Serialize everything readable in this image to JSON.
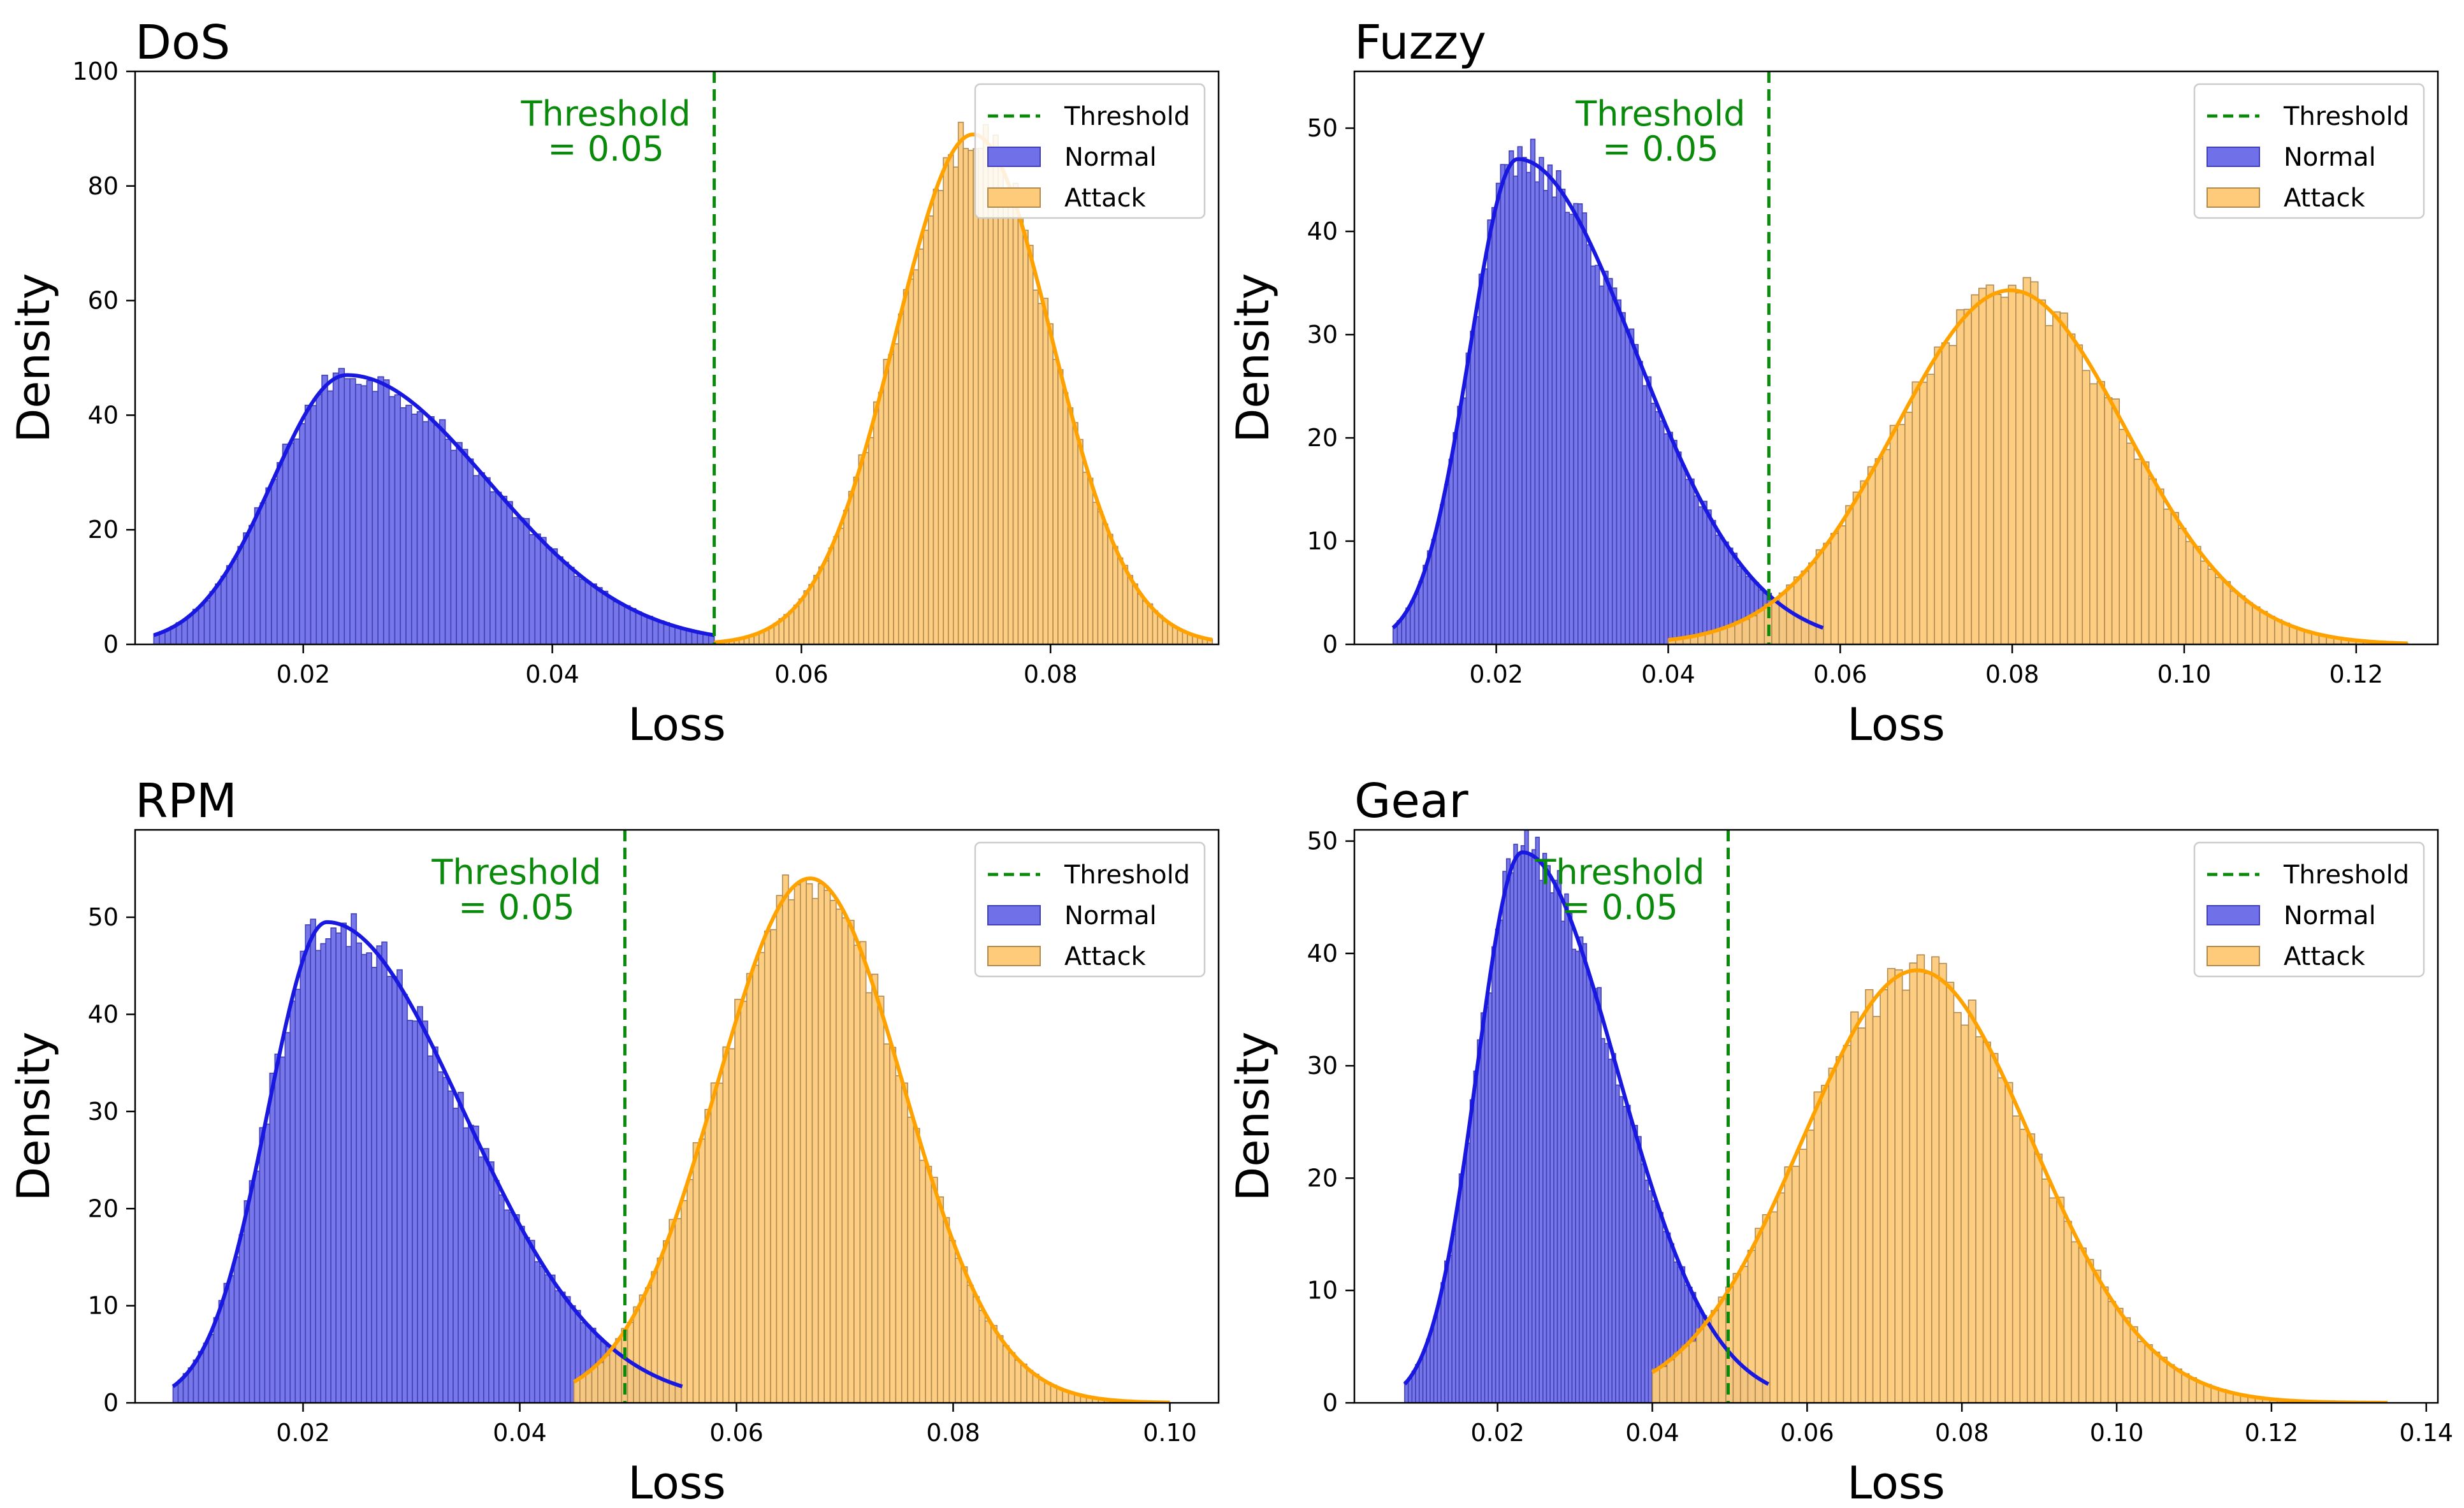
{
  "figure": {
    "colors": {
      "normal_fill": "#7070e8",
      "normal_edge": "#4040b8",
      "normal_kde": "#1818e0",
      "attack_fill": "#fdcb7a",
      "attack_edge": "#b08a50",
      "attack_kde": "#ffa200",
      "threshold": "#0a8a0a",
      "axis": "#000000"
    }
  },
  "chart_data": [
    {
      "type": "histogram",
      "title": "DoS",
      "xlabel": "Loss",
      "ylabel": "Density",
      "xlim": [
        0.0065,
        0.0935
      ],
      "ylim": [
        0,
        100
      ],
      "xticks": [
        0.02,
        0.04,
        0.06,
        0.08
      ],
      "xtick_labels": [
        "0.02",
        "0.04",
        "0.06",
        "0.08"
      ],
      "yticks": [
        0,
        20,
        40,
        60,
        80,
        100
      ],
      "ytick_labels": [
        "0",
        "20",
        "40",
        "60",
        "80",
        "100"
      ],
      "threshold": {
        "value": 0.053,
        "label": "Threshold",
        "annotation": [
          "Threshold",
          "= 0.05"
        ]
      },
      "legend": {
        "location": "top-right",
        "entries": [
          "Threshold",
          "Normal",
          "Attack"
        ]
      },
      "series": [
        {
          "name": "Normal",
          "range": [
            0.008,
            0.053
          ],
          "shape": "right-skewed",
          "peak_x": 0.0235,
          "peak_density": 47
        },
        {
          "name": "Attack",
          "range": [
            0.053,
            0.093
          ],
          "shape": "bell",
          "peak_x": 0.0738,
          "peak_density": 89
        }
      ]
    },
    {
      "type": "histogram",
      "title": "Fuzzy",
      "xlabel": "Loss",
      "ylabel": "Density",
      "xlim": [
        0.0035,
        0.1295
      ],
      "ylim": [
        0,
        55.5
      ],
      "xticks": [
        0.02,
        0.04,
        0.06,
        0.08,
        0.1,
        0.12
      ],
      "xtick_labels": [
        "0.02",
        "0.04",
        "0.06",
        "0.08",
        "0.10",
        "0.12"
      ],
      "yticks": [
        0,
        10,
        20,
        30,
        40,
        50
      ],
      "ytick_labels": [
        "0",
        "10",
        "20",
        "30",
        "40",
        "50"
      ],
      "threshold": {
        "value": 0.0517,
        "label": "Threshold",
        "annotation": [
          "Threshold",
          "= 0.05"
        ]
      },
      "legend": {
        "location": "top-right",
        "entries": [
          "Threshold",
          "Normal",
          "Attack"
        ]
      },
      "series": [
        {
          "name": "Normal",
          "range": [
            0.008,
            0.058
          ],
          "shape": "right-skewed",
          "peak_x": 0.0225,
          "peak_density": 47
        },
        {
          "name": "Attack",
          "range": [
            0.04,
            0.126
          ],
          "shape": "bell",
          "peak_x": 0.0798,
          "peak_density": 34.3
        }
      ]
    },
    {
      "type": "histogram",
      "title": "RPM",
      "xlabel": "Loss",
      "ylabel": "Density",
      "xlim": [
        0.0045,
        0.1045
      ],
      "ylim": [
        0,
        59
      ],
      "xticks": [
        0.02,
        0.04,
        0.06,
        0.08,
        0.1
      ],
      "xtick_labels": [
        "0.02",
        "0.04",
        "0.06",
        "0.08",
        "0.10"
      ],
      "yticks": [
        0,
        10,
        20,
        30,
        40,
        50
      ],
      "ytick_labels": [
        "0",
        "10",
        "20",
        "30",
        "40",
        "50"
      ],
      "threshold": {
        "value": 0.0497,
        "label": "Threshold",
        "annotation": [
          "Threshold",
          "= 0.05"
        ]
      },
      "legend": {
        "location": "top-right",
        "entries": [
          "Threshold",
          "Normal",
          "Attack"
        ]
      },
      "series": [
        {
          "name": "Normal",
          "range": [
            0.008,
            0.055
          ],
          "shape": "right-skewed",
          "peak_x": 0.0222,
          "peak_density": 49.5
        },
        {
          "name": "Attack",
          "range": [
            0.045,
            0.1
          ],
          "shape": "bell",
          "peak_x": 0.0668,
          "peak_density": 54
        }
      ]
    },
    {
      "type": "histogram",
      "title": "Gear",
      "xlabel": "Loss",
      "ylabel": "Density",
      "xlim": [
        0.0015,
        0.1415
      ],
      "ylim": [
        0,
        51
      ],
      "xticks": [
        0.02,
        0.04,
        0.06,
        0.08,
        0.1,
        0.12,
        0.14
      ],
      "xtick_labels": [
        "0.02",
        "0.04",
        "0.06",
        "0.08",
        "0.10",
        "0.12",
        "0.14"
      ],
      "yticks": [
        0,
        10,
        20,
        30,
        40,
        50
      ],
      "ytick_labels": [
        "0",
        "10",
        "20",
        "30",
        "40",
        "50"
      ],
      "threshold": {
        "value": 0.0498,
        "label": "Threshold",
        "annotation": [
          "Threshold",
          "= 0.05"
        ]
      },
      "legend": {
        "location": "top-right",
        "entries": [
          "Threshold",
          "Normal",
          "Attack"
        ]
      },
      "series": [
        {
          "name": "Normal",
          "range": [
            0.008,
            0.055
          ],
          "shape": "right-skewed",
          "peak_x": 0.0232,
          "peak_density": 49
        },
        {
          "name": "Attack",
          "range": [
            0.04,
            0.135
          ],
          "shape": "bell",
          "peak_x": 0.0742,
          "peak_density": 38.5
        }
      ]
    }
  ]
}
